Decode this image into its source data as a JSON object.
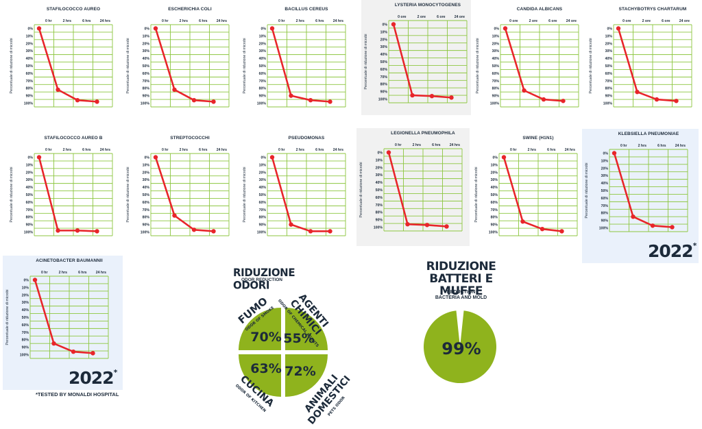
{
  "chart_data": [
    {
      "type": "line",
      "title": "STAFILOCOCCO AUREO",
      "x": [
        "0 hr",
        "2 hrs",
        "6 hrs",
        "24 hrs"
      ],
      "values": [
        0,
        82,
        96,
        98
      ],
      "ylabel": "Percentuale di riduzione di microbi",
      "yticks": [
        "0%",
        "10%",
        "20%",
        "30%",
        "40%",
        "50%",
        "60%",
        "70%",
        "80%",
        "90%",
        "100%"
      ],
      "ylim": [
        0,
        100
      ]
    },
    {
      "type": "line",
      "title": "ESCHERICHIA COLI",
      "x": [
        "0 hr",
        "2 hrs",
        "6 hrs",
        "24 hrs"
      ],
      "values": [
        0,
        82,
        96,
        98
      ],
      "ylabel": "Percentuale di riduzione di microbi",
      "yticks": [
        "0%",
        "10%",
        "20%",
        "30%",
        "40%",
        "50%",
        "60%",
        "70%",
        "80%",
        "90%",
        "100%"
      ],
      "ylim": [
        0,
        100
      ]
    },
    {
      "type": "line",
      "title": "BACILLUS CEREUS",
      "x": [
        "0 hr",
        "2 hrs",
        "6 hrs",
        "24 hrs"
      ],
      "values": [
        0,
        90,
        96,
        98
      ],
      "ylabel": "Percentuale di riduzione di microbi",
      "yticks": [
        "0%",
        "10%",
        "20%",
        "30%",
        "40%",
        "50%",
        "60%",
        "70%",
        "80%",
        "90%",
        "100%"
      ],
      "ylim": [
        0,
        100
      ]
    },
    {
      "type": "line",
      "title": "LYSTERIA MONOCYTOGENES",
      "x": [
        "0 ore",
        "2 ore",
        "6 ore",
        "24 ore"
      ],
      "values": [
        0,
        95,
        96,
        98
      ],
      "ylabel": "Percentuale di riduzione di microbi",
      "yticks": [
        "0%",
        "10%",
        "20%",
        "30%",
        "40%",
        "50%",
        "60%",
        "70%",
        "80%",
        "90%",
        "100%"
      ],
      "ylim": [
        0,
        100
      ]
    },
    {
      "type": "line",
      "title": "CANDIDA ALBICANS",
      "x": [
        "0 ore",
        "2 ore",
        "6 ore",
        "24 ore"
      ],
      "values": [
        0,
        83,
        95,
        97
      ],
      "ylabel": "Percentuale di riduzione di microbi",
      "yticks": [
        "0%",
        "10%",
        "20%",
        "30%",
        "40%",
        "50%",
        "60%",
        "70%",
        "80%",
        "90%",
        "100%"
      ],
      "ylim": [
        0,
        100
      ]
    },
    {
      "type": "line",
      "title": "STACHYBOTRYS CHARTARUM",
      "x": [
        "0 ore",
        "2 ore",
        "6 ore",
        "24 ore"
      ],
      "values": [
        0,
        85,
        95,
        97
      ],
      "ylabel": "Percentuale di riduzione di microbi",
      "yticks": [
        "0%",
        "10%",
        "20%",
        "30%",
        "40%",
        "50%",
        "60%",
        "70%",
        "80%",
        "90%",
        "100%"
      ],
      "ylim": [
        0,
        100
      ]
    },
    {
      "type": "line",
      "title": "STAFILOCOCCO AUREO B",
      "x": [
        "0 hr",
        "2 hrs",
        "6 hrs",
        "24 hrs"
      ],
      "values": [
        0,
        98,
        98,
        99
      ],
      "ylabel": "Percentuale di riduzione di microbi",
      "yticks": [
        "0%",
        "10%",
        "20%",
        "30%",
        "40%",
        "50%",
        "60%",
        "70%",
        "80%",
        "90%",
        "100%"
      ],
      "ylim": [
        0,
        100
      ]
    },
    {
      "type": "line",
      "title": "STREPTOCOCCHI",
      "x": [
        "0 hr",
        "2 hrs",
        "6 hrs",
        "24 hrs"
      ],
      "values": [
        0,
        78,
        97,
        99
      ],
      "ylabel": "Percentuale di riduzione di microbi",
      "yticks": [
        "0%",
        "10%",
        "20%",
        "30%",
        "40%",
        "50%",
        "60%",
        "70%",
        "80%",
        "90%",
        "100%"
      ],
      "ylim": [
        0,
        100
      ]
    },
    {
      "type": "line",
      "title": "PSEUDOMONAS",
      "x": [
        "0 hr",
        "2 hrs",
        "6 hrs",
        "24 hrs"
      ],
      "values": [
        0,
        90,
        99,
        99
      ],
      "ylabel": "Percentuale di riduzione di microbi",
      "yticks": [
        "0%",
        "10%",
        "20%",
        "30%",
        "40%",
        "50%",
        "60%",
        "70%",
        "80%",
        "90%",
        "100%"
      ],
      "ylim": [
        0,
        100
      ]
    },
    {
      "type": "line",
      "title": "LEGIONELLA PNEUMOPHILA",
      "x": [
        "0 hr",
        "2 hrs",
        "6 hrs",
        "24 hrs"
      ],
      "values": [
        0,
        96,
        97,
        99
      ],
      "ylabel": "Percentuale di riduzione di microbi",
      "yticks": [
        "0%",
        "10%",
        "20%",
        "30%",
        "40%",
        "50%",
        "60%",
        "70%",
        "80%",
        "90%",
        "100%"
      ],
      "ylim": [
        0,
        100
      ]
    },
    {
      "type": "line",
      "title": "SWINE (H1N1)",
      "x": [
        "0 hr",
        "2 hrs",
        "6 hrs",
        "24 hrs"
      ],
      "values": [
        0,
        86,
        96,
        99
      ],
      "ylabel": "Percentuale di riduzione di microbi",
      "yticks": [
        "0%",
        "10%",
        "20%",
        "30%",
        "40%",
        "50%",
        "60%",
        "70%",
        "80%",
        "90%",
        "100%"
      ],
      "ylim": [
        0,
        100
      ]
    },
    {
      "type": "line",
      "title": "KLEBSIELLA PNEUMONIAE",
      "x": [
        "0 hr",
        "2 hrs",
        "6 hrs",
        "24 hrs"
      ],
      "values": [
        0,
        85,
        97,
        99
      ],
      "ylabel": "Percentuale di riduzione di microbi",
      "yticks": [
        "0%",
        "10%",
        "20%",
        "30%",
        "40%",
        "50%",
        "60%",
        "70%",
        "80%",
        "90%",
        "100%"
      ],
      "ylim": [
        0,
        100
      ]
    },
    {
      "type": "line",
      "title": "ACINETOBACTER BAUMANNII",
      "x": [
        "0 hr",
        "2 hrs",
        "6 hrs",
        "24 hrs"
      ],
      "values": [
        0,
        85,
        96,
        98
      ],
      "ylabel": "Percentuale di riduzione di microbi",
      "yticks": [
        "0%",
        "10%",
        "20%",
        "30%",
        "40%",
        "50%",
        "60%",
        "70%",
        "80%",
        "90%",
        "100%"
      ],
      "ylim": [
        0,
        100
      ]
    },
    {
      "type": "pie",
      "title": "RIDUZIONE ODORI",
      "subtitle": "ODOR REDUCTION",
      "slices": [
        {
          "label": "AGENTI CHIMICI",
          "sublabel": "ODOR OF CHEMICAL AGENTS",
          "value": 55
        },
        {
          "label": "ANIMALI DOMESTICI",
          "sublabel": "PETS ODOR",
          "value": 72
        },
        {
          "label": "CUCINA",
          "sublabel": "ODOR OF KITCHEN",
          "value": 63
        },
        {
          "label": "FUMO",
          "sublabel": "ODOR OF SMOKE",
          "value": 70
        }
      ]
    },
    {
      "type": "pie",
      "title": "RIDUZIONE BATTERI E MUFFE",
      "subtitle": "REDUCTION BACTERIA AND MOLD",
      "values": [
        99,
        1
      ],
      "value_label": "99%"
    }
  ],
  "colors": {
    "grid": "#8cc63f",
    "line": "#e8252a",
    "accent": "#8fb31d",
    "text": "#1c2a3a",
    "bg_gray": "#f1f1f1",
    "bg_blue": "#eaf1fb"
  },
  "badges": {
    "year": "2022",
    "star": "*"
  },
  "footnote": "*TESTED BY MONALDI HOSPITAL",
  "odor": {
    "title": "RIDUZIONE ODORI",
    "subtitle": "ODOR REDUCTION"
  },
  "bacteria": {
    "title_line1": "RIDUZIONE",
    "title_line2": "BATTERI E MUFFE",
    "subtitle_line1": "REDUCTION",
    "subtitle_line2": "BACTERIA AND MOLD"
  }
}
